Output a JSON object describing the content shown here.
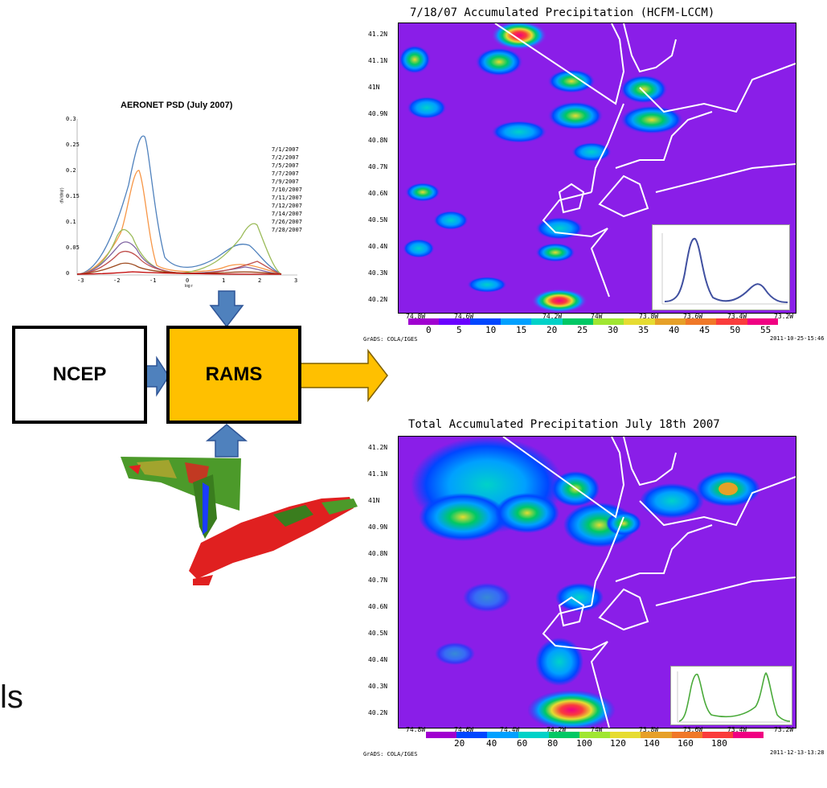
{
  "psd_chart": {
    "title": "AERONET PSD (July 2007)",
    "ylabel": "dV/dln(r)",
    "xlabel": "log r",
    "yticks": [
      "0.3",
      "0.25",
      "0.2",
      "0.15",
      "0.1",
      "0.05",
      "0"
    ],
    "xticks": [
      "-3",
      "-2",
      "-1",
      "0",
      "1",
      "2",
      "3"
    ],
    "legend": [
      "7/1/2007",
      "7/2/2007",
      "7/5/2007",
      "7/7/2007",
      "7/9/2007",
      "7/10/2007",
      "7/11/2007",
      "7/12/2007",
      "7/14/2007",
      "7/26/2007",
      "7/28/2007"
    ]
  },
  "boxes": {
    "ncep": "NCEP",
    "rams": "RAMS"
  },
  "left_partial_text": "ls",
  "top_map": {
    "title": "7/18/07 Accumulated Precipitation (HCFM-LCCM)",
    "lat_ticks": [
      "41.2N",
      "41.1N",
      "41N",
      "40.9N",
      "40.8N",
      "40.7N",
      "40.6N",
      "40.5N",
      "40.4N",
      "40.3N",
      "40.2N"
    ],
    "lon_ticks": [
      "74.8W",
      "74.6W",
      "74.2W",
      "74W",
      "73.8W",
      "73.6W",
      "73.4W",
      "73.2W"
    ],
    "colorbar_labels": [
      "0",
      "5",
      "10",
      "15",
      "20",
      "25",
      "30",
      "35",
      "40",
      "45",
      "50",
      "55"
    ],
    "colorbar_colors": [
      "#a000d0",
      "#6a00ff",
      "#0046ff",
      "#00a0ff",
      "#00d2c8",
      "#00c864",
      "#a0e632",
      "#e6dc32",
      "#e6a028",
      "#f07828",
      "#fa3c3c",
      "#f00082"
    ],
    "credit": "GrADS: COLA/IGES",
    "timestamp": "2011-10-25-15:46"
  },
  "bottom_map": {
    "title": "Total Accumulated Precipitation July 18th 2007",
    "lat_ticks": [
      "41.2N",
      "41.1N",
      "41N",
      "40.9N",
      "40.8N",
      "40.7N",
      "40.6N",
      "40.5N",
      "40.4N",
      "40.3N",
      "40.2N"
    ],
    "lon_ticks": [
      "74.8W",
      "74.6W",
      "74.4W",
      "74.2W",
      "74W",
      "73.8W",
      "73.6W",
      "73.4W",
      "73.2W"
    ],
    "colorbar_labels": [
      "20",
      "40",
      "60",
      "80",
      "100",
      "120",
      "140",
      "160",
      "180"
    ],
    "colorbar_colors": [
      "#a000d0",
      "#0046ff",
      "#00a0ff",
      "#00d2c8",
      "#00c864",
      "#a0e632",
      "#e6dc32",
      "#e6a028",
      "#f07828",
      "#fa3c3c",
      "#f00082"
    ],
    "credit": "GrADS: COLA/IGES",
    "timestamp": "2011-12-13-13:28"
  },
  "colors": {
    "map_bg": "#8a1ee8",
    "rams_fill": "#ffc000",
    "arrow_blue": "#4f81bd"
  }
}
